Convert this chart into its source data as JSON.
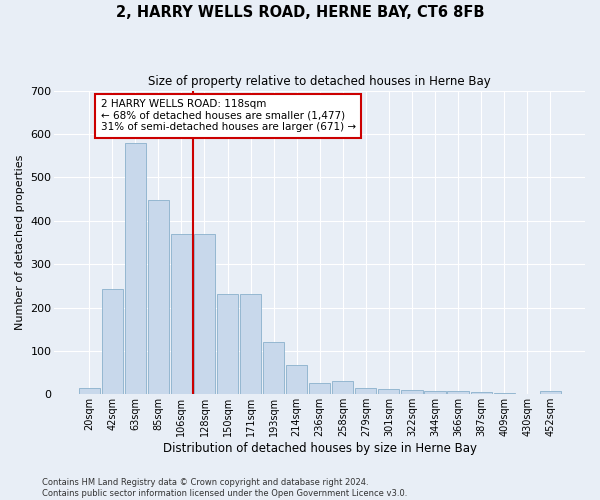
{
  "title": "2, HARRY WELLS ROAD, HERNE BAY, CT6 8FB",
  "subtitle": "Size of property relative to detached houses in Herne Bay",
  "xlabel": "Distribution of detached houses by size in Herne Bay",
  "ylabel": "Number of detached properties",
  "bar_color": "#c8d8eb",
  "bar_edgecolor": "#8ab0cc",
  "background_color": "#e8eef6",
  "grid_color": "#ffffff",
  "categories": [
    "20sqm",
    "42sqm",
    "63sqm",
    "85sqm",
    "106sqm",
    "128sqm",
    "150sqm",
    "171sqm",
    "193sqm",
    "214sqm",
    "236sqm",
    "258sqm",
    "279sqm",
    "301sqm",
    "322sqm",
    "344sqm",
    "366sqm",
    "387sqm",
    "409sqm",
    "430sqm",
    "452sqm"
  ],
  "values": [
    15,
    242,
    580,
    447,
    370,
    370,
    232,
    232,
    120,
    68,
    25,
    30,
    15,
    12,
    10,
    8,
    7,
    5,
    3,
    1,
    7
  ],
  "vline_color": "#cc0000",
  "annotation_text": "2 HARRY WELLS ROAD: 118sqm\n← 68% of detached houses are smaller (1,477)\n31% of semi-detached houses are larger (671) →",
  "annotation_box_facecolor": "#ffffff",
  "annotation_box_edgecolor": "#cc0000",
  "ylim": [
    0,
    700
  ],
  "yticks": [
    0,
    100,
    200,
    300,
    400,
    500,
    600,
    700
  ],
  "footer_line1": "Contains HM Land Registry data © Crown copyright and database right 2024.",
  "footer_line2": "Contains public sector information licensed under the Open Government Licence v3.0.",
  "figsize": [
    6.0,
    5.0
  ],
  "dpi": 100
}
